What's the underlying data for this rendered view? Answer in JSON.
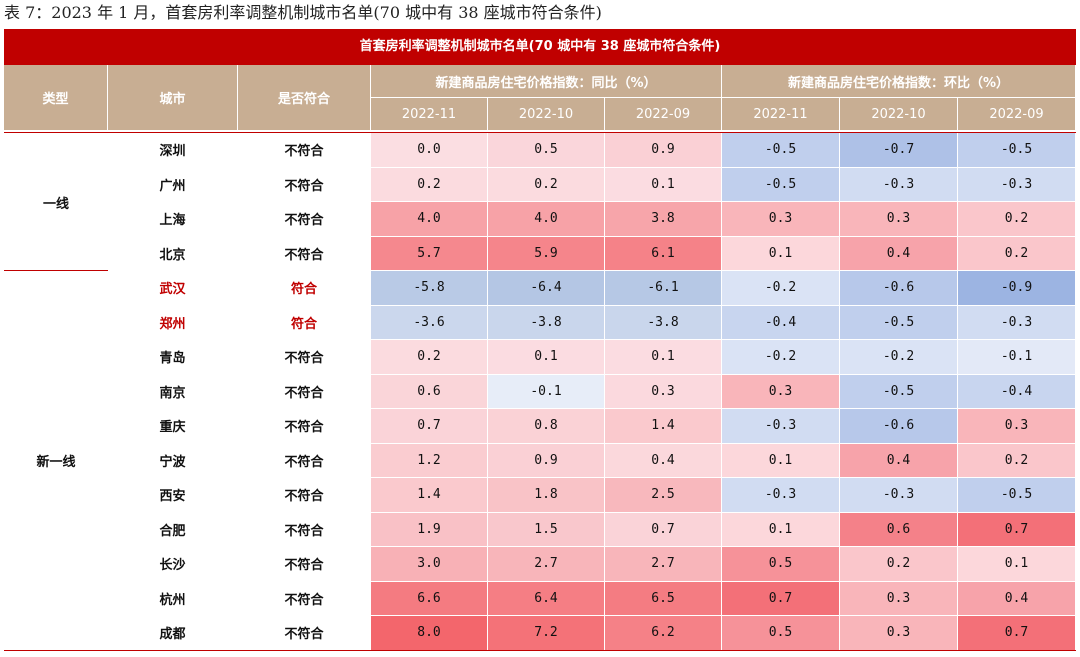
{
  "caption": "表 7：2023 年 1 月，首套房利率调整机制城市名单(70 城中有 38 座城市符合条件)",
  "banner": "首套房利率调整机制城市名单(70 城中有 38 座城市符合条件)",
  "headers": {
    "type": "类型",
    "city": "城市",
    "eligible": "是否符合",
    "yoy_group": "新建商品房住宅价格指数：同比（%）",
    "mom_group": "新建商品房住宅价格指数：环比（%）",
    "months": [
      "2022-11",
      "2022-10",
      "2022-09",
      "2022-11",
      "2022-10",
      "2022-09"
    ]
  },
  "groups": [
    {
      "name": "一线",
      "start": 0,
      "count": 4
    },
    {
      "name": "新一线",
      "start": 4,
      "count": 11
    }
  ],
  "rows": [
    {
      "city": "深圳",
      "eligible": "不符合",
      "highlight": false,
      "yoy": [
        "0.0",
        "0.5",
        "0.9"
      ],
      "mom": [
        "-0.5",
        "-0.7",
        "-0.5"
      ]
    },
    {
      "city": "广州",
      "eligible": "不符合",
      "highlight": false,
      "yoy": [
        "0.2",
        "0.2",
        "0.1"
      ],
      "mom": [
        "-0.5",
        "-0.3",
        "-0.3"
      ]
    },
    {
      "city": "上海",
      "eligible": "不符合",
      "highlight": false,
      "yoy": [
        "4.0",
        "4.0",
        "3.8"
      ],
      "mom": [
        "0.3",
        "0.3",
        "0.2"
      ]
    },
    {
      "city": "北京",
      "eligible": "不符合",
      "highlight": false,
      "yoy": [
        "5.7",
        "5.9",
        "6.1"
      ],
      "mom": [
        "0.1",
        "0.4",
        "0.2"
      ]
    },
    {
      "city": "武汉",
      "eligible": "符合",
      "highlight": true,
      "yoy": [
        "-5.8",
        "-6.4",
        "-6.1"
      ],
      "mom": [
        "-0.2",
        "-0.6",
        "-0.9"
      ]
    },
    {
      "city": "郑州",
      "eligible": "符合",
      "highlight": true,
      "yoy": [
        "-3.6",
        "-3.8",
        "-3.8"
      ],
      "mom": [
        "-0.4",
        "-0.5",
        "-0.3"
      ]
    },
    {
      "city": "青岛",
      "eligible": "不符合",
      "highlight": false,
      "yoy": [
        "0.2",
        "0.1",
        "0.1"
      ],
      "mom": [
        "-0.2",
        "-0.2",
        "-0.1"
      ]
    },
    {
      "city": "南京",
      "eligible": "不符合",
      "highlight": false,
      "yoy": [
        "0.6",
        "-0.1",
        "0.3"
      ],
      "mom": [
        "0.3",
        "-0.5",
        "-0.4"
      ]
    },
    {
      "city": "重庆",
      "eligible": "不符合",
      "highlight": false,
      "yoy": [
        "0.7",
        "0.8",
        "1.4"
      ],
      "mom": [
        "-0.3",
        "-0.6",
        "0.3"
      ]
    },
    {
      "city": "宁波",
      "eligible": "不符合",
      "highlight": false,
      "yoy": [
        "1.2",
        "0.9",
        "0.4"
      ],
      "mom": [
        "0.1",
        "0.4",
        "0.2"
      ]
    },
    {
      "city": "西安",
      "eligible": "不符合",
      "highlight": false,
      "yoy": [
        "1.4",
        "1.8",
        "2.5"
      ],
      "mom": [
        "-0.3",
        "-0.3",
        "-0.5"
      ]
    },
    {
      "city": "合肥",
      "eligible": "不符合",
      "highlight": false,
      "yoy": [
        "1.9",
        "1.5",
        "0.7"
      ],
      "mom": [
        "0.1",
        "0.6",
        "0.7"
      ]
    },
    {
      "city": "长沙",
      "eligible": "不符合",
      "highlight": false,
      "yoy": [
        "3.0",
        "2.7",
        "2.7"
      ],
      "mom": [
        "0.5",
        "0.2",
        "0.1"
      ]
    },
    {
      "city": "杭州",
      "eligible": "不符合",
      "highlight": false,
      "yoy": [
        "6.6",
        "6.4",
        "6.5"
      ],
      "mom": [
        "0.7",
        "0.3",
        "0.4"
      ]
    },
    {
      "city": "成都",
      "eligible": "不符合",
      "highlight": false,
      "yoy": [
        "8.0",
        "7.2",
        "6.2"
      ],
      "mom": [
        "0.5",
        "0.3",
        "0.7"
      ]
    }
  ],
  "colors": {
    "banner": "#c00000",
    "header": "#c8ae93",
    "highlight_text": "#c00000"
  }
}
